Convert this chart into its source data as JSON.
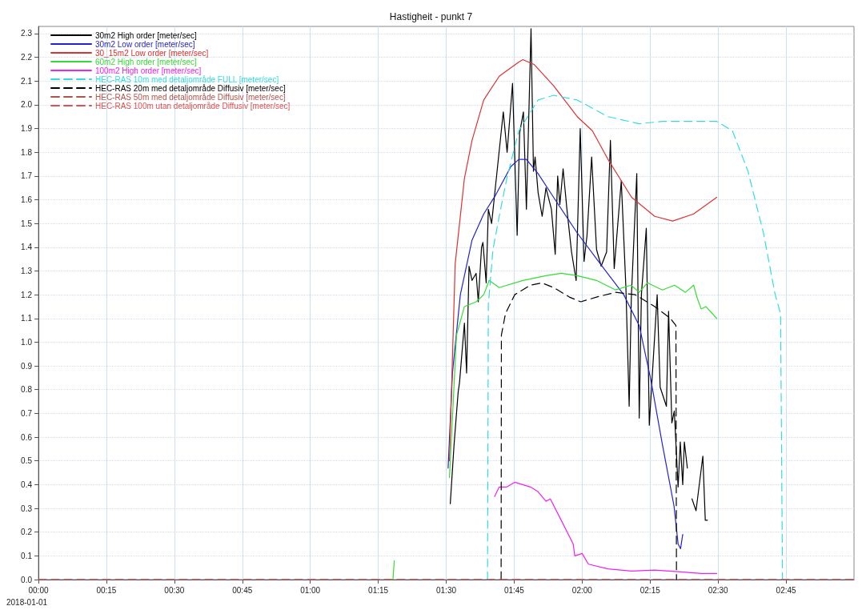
{
  "chart_data": {
    "type": "line",
    "title": "Hastigheit - punkt 7",
    "xlim": [
      0,
      3
    ],
    "ylim": [
      0,
      2.33
    ],
    "xticks": [
      {
        "value": 0,
        "label": "00:00"
      },
      {
        "value": 0.25,
        "label": "00:15"
      },
      {
        "value": 0.5,
        "label": "00:30"
      },
      {
        "value": 0.75,
        "label": "00:45"
      },
      {
        "value": 1,
        "label": "01:00"
      },
      {
        "value": 1.25,
        "label": "01:15"
      },
      {
        "value": 1.5,
        "label": "01:30"
      },
      {
        "value": 1.75,
        "label": "01:45"
      },
      {
        "value": 2,
        "label": "02:00"
      },
      {
        "value": 2.25,
        "label": "02:15"
      },
      {
        "value": 2.5,
        "label": "02:30"
      },
      {
        "value": 2.75,
        "label": "02:45"
      }
    ],
    "yticks": [
      {
        "value": 0,
        "label": "0.0"
      },
      {
        "value": 0.1,
        "label": "0.1"
      },
      {
        "value": 0.2,
        "label": "0.2"
      },
      {
        "value": 0.3,
        "label": "0.3"
      },
      {
        "value": 0.4,
        "label": "0.4"
      },
      {
        "value": 0.5,
        "label": "0.5"
      },
      {
        "value": 0.6,
        "label": "0.6"
      },
      {
        "value": 0.7,
        "label": "0.7"
      },
      {
        "value": 0.8,
        "label": "0.8"
      },
      {
        "value": 0.9,
        "label": "0.9"
      },
      {
        "value": 1,
        "label": "1.0"
      },
      {
        "value": 1.1,
        "label": "1.1"
      },
      {
        "value": 1.2,
        "label": "1.2"
      },
      {
        "value": 1.3,
        "label": "1.3"
      },
      {
        "value": 1.4,
        "label": "1.4"
      },
      {
        "value": 1.5,
        "label": "1.5"
      },
      {
        "value": 1.6,
        "label": "1.6"
      },
      {
        "value": 1.7,
        "label": "1.7"
      },
      {
        "value": 1.8,
        "label": "1.8"
      },
      {
        "value": 1.9,
        "label": "1.9"
      },
      {
        "value": 2,
        "label": "2.0"
      },
      {
        "value": 2.1,
        "label": "2.1"
      },
      {
        "value": 2.2,
        "label": "2.2"
      },
      {
        "value": 2.3,
        "label": "2.3"
      }
    ],
    "grid": true,
    "legend": "top left",
    "marker": "none",
    "line_style": "solid",
    "annotations": [
      "2018-01-01"
    ],
    "series": [
      {
        "name": "30m2 High order [meter/sec]",
        "color": "#000000",
        "x": [
          1.515,
          1.529,
          1.544,
          1.549,
          1.567,
          1.575,
          1.584,
          1.595,
          1.61,
          1.618,
          1.63,
          1.635,
          1.647,
          1.655,
          1.667,
          1.71,
          1.724,
          1.744,
          1.761,
          1.77,
          1.784,
          1.795,
          1.812,
          1.821,
          1.827,
          1.838,
          1.853,
          1.867,
          1.887,
          1.901,
          1.91,
          1.918,
          1.93,
          1.944,
          1.961,
          1.978,
          1.993,
          2.007,
          2.018,
          2.035,
          2.053,
          2.07,
          2.09,
          2.104,
          2.118,
          2.144,
          2.161,
          2.173,
          2.181,
          2.201,
          2.21,
          2.218,
          2.236,
          2.247,
          2.276,
          2.287,
          2.31,
          2.318,
          2.33,
          2.339,
          2.353,
          2.361,
          2.37,
          2.376,
          2.387,
          2.395,
          2.404,
          2.419,
          2.444,
          2.453,
          2.461
        ],
        "values": [
          0.32,
          0.57,
          0.79,
          0.83,
          1.08,
          0.87,
          1.32,
          1.26,
          1.29,
          1.17,
          1.4,
          1.42,
          1.25,
          1.56,
          1.5,
          1.97,
          1.8,
          2.09,
          1.45,
          1.88,
          1.97,
          1.56,
          2.32,
          1.72,
          1.78,
          1.63,
          1.53,
          1.65,
          1.56,
          1.37,
          1.7,
          1.58,
          1.73,
          1.56,
          1.38,
          1.26,
          1.9,
          1.34,
          1.45,
          1.78,
          1.39,
          1.32,
          1.38,
          1.85,
          1.31,
          1.68,
          1.23,
          0.73,
          1.19,
          1.71,
          0.68,
          1.2,
          1.48,
          0.65,
          1.2,
          0.81,
          0.73,
          1.13,
          0.66,
          0.71,
          0.39,
          0.58,
          0.4,
          0.58,
          0.47,
          null,
          0.34,
          0.29,
          0.52,
          0.25,
          0.25
        ]
      },
      {
        "name": "30m2 Low order [meter/sec]",
        "color": "#2323d0",
        "x": [
          1.507,
          1.523,
          1.552,
          1.595,
          1.638,
          1.682,
          1.738,
          1.767,
          1.795,
          1.838,
          1.895,
          1.982,
          2.067,
          2.153,
          2.21,
          2.253,
          2.295,
          2.338,
          2.353,
          2.362,
          2.37
        ],
        "values": [
          0.47,
          0.87,
          1.2,
          1.43,
          1.54,
          1.62,
          1.74,
          1.77,
          1.77,
          1.71,
          1.61,
          1.46,
          1.33,
          1.2,
          1.07,
          0.84,
          0.57,
          0.31,
          0.15,
          0.13,
          0.19
        ]
      },
      {
        "name": "30_15m2 Low order [meter/sec]",
        "color": "#e03030",
        "x": [
          1.512,
          1.533,
          1.567,
          1.595,
          1.638,
          1.695,
          1.767,
          1.782,
          1.823,
          1.895,
          1.982,
          2.038,
          2.095,
          2.182,
          2.267,
          2.333,
          2.41,
          2.495
        ],
        "values": [
          0.5,
          1.33,
          1.69,
          1.85,
          2.02,
          2.12,
          2.18,
          2.19,
          2.17,
          2.08,
          1.95,
          1.89,
          1.77,
          1.61,
          1.53,
          1.51,
          1.54,
          1.61
        ]
      },
      {
        "name": "60m2 High order [meter/sec]",
        "color": "#33dd33",
        "x": [
          1.304,
          1.309,
          1.4,
          1.512,
          1.538,
          1.567,
          1.61,
          1.638,
          1.658,
          1.695,
          1.782,
          1.867,
          1.923,
          1.982,
          2.053,
          2.123,
          2.18,
          2.21,
          2.24,
          2.295,
          2.34,
          2.38,
          2.41,
          2.425,
          2.438,
          2.455,
          2.495
        ],
        "values": [
          0,
          0.08,
          null,
          0.43,
          1.03,
          1.15,
          1.17,
          1.2,
          1.26,
          1.23,
          1.26,
          1.28,
          1.29,
          1.28,
          1.26,
          1.22,
          1.24,
          1.21,
          1.25,
          1.22,
          1.24,
          1.21,
          1.24,
          1.18,
          1.14,
          1.15,
          1.1
        ]
      },
      {
        "name": "100m2 High order [meter/sec]",
        "color": "#ee22ee",
        "x": [
          1.678,
          1.695,
          1.723,
          1.752,
          1.81,
          1.838,
          1.867,
          1.883,
          1.923,
          1.967,
          1.973,
          2.0,
          2.023,
          2.095,
          2.182,
          2.267,
          2.353,
          2.438,
          2.495
        ],
        "values": [
          0.35,
          0.39,
          0.39,
          0.41,
          0.39,
          0.37,
          0.33,
          0.34,
          0.25,
          0.15,
          0.1,
          0.11,
          0.065,
          0.045,
          0.036,
          0.04,
          0.033,
          0.026,
          0.026
        ]
      },
      {
        "name": "HEC-RAS 10m med detaljområde FULL [meter/sec]",
        "color": "#33dddd",
        "line_style": "dashed",
        "x": [
          1.652,
          1.655,
          1.672,
          1.695,
          1.723,
          1.767,
          1.838,
          1.895,
          1.982,
          2.095,
          2.21,
          2.295,
          2.382,
          2.495,
          2.553,
          2.61,
          2.667,
          2.71,
          2.73,
          2.737
        ],
        "values": [
          0,
          1.16,
          1.39,
          1.53,
          1.69,
          1.89,
          2.02,
          2.04,
          2.02,
          1.95,
          1.92,
          1.93,
          1.93,
          1.93,
          1.89,
          1.72,
          1.46,
          1.2,
          1.12,
          0
        ]
      },
      {
        "name": "HEC-RAS 20m med detaljområde Diffusiv [meter/sec]",
        "color": "#000000",
        "line_style": "dashed",
        "x": [
          1.702,
          1.703,
          1.718,
          1.752,
          1.81,
          1.852,
          1.895,
          1.953,
          1.995,
          2.053,
          2.123,
          2.195,
          2.267,
          2.325,
          2.345,
          2.347
        ],
        "values": [
          0,
          1.03,
          1.12,
          1.2,
          1.24,
          1.25,
          1.23,
          1.19,
          1.17,
          1.19,
          1.21,
          1.2,
          1.15,
          1.1,
          1.07,
          0
        ]
      },
      {
        "name": "HEC-RAS 50m med detaljområde Diffusiv [meter/sec]",
        "color": "#b8504a",
        "line_style": "dashed",
        "x": [
          0,
          3
        ],
        "values": [
          0,
          0
        ]
      },
      {
        "name": "HEC-RAS 100m utan detaljområde Diffusiv [meter/sec]",
        "color": "#e05050",
        "line_style": "dashed",
        "x": [
          0,
          3
        ],
        "values": [
          0,
          0
        ]
      }
    ]
  }
}
